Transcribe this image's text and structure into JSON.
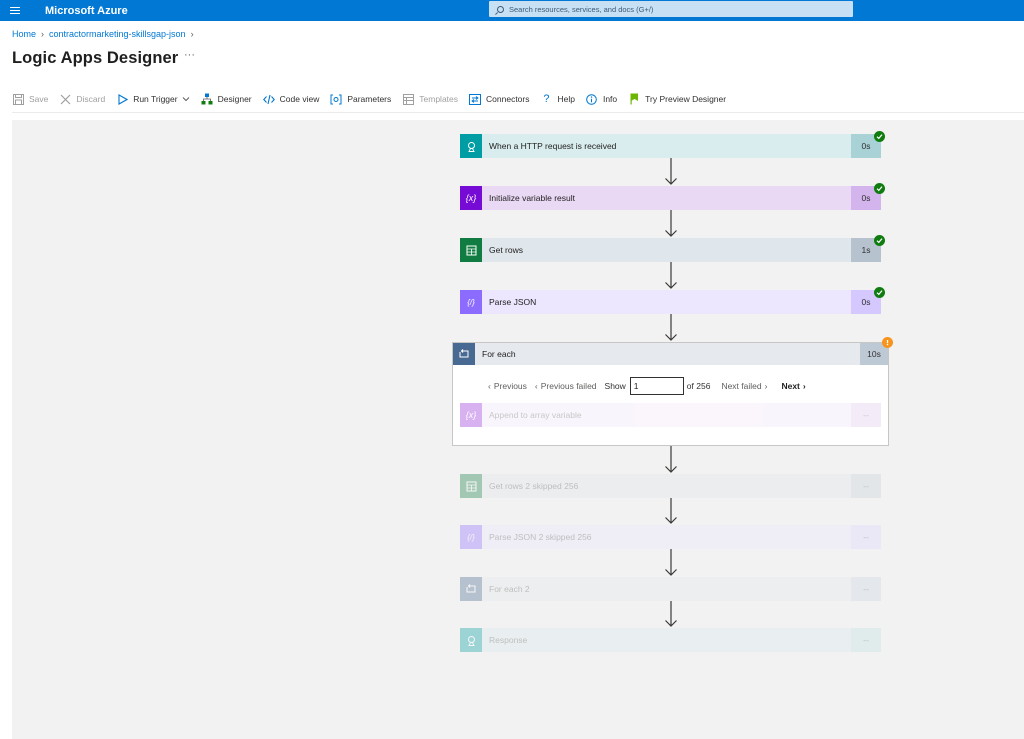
{
  "header": {
    "brand": "Microsoft Azure",
    "search_placeholder": "Search resources, services, and docs (G+/)"
  },
  "breadcrumb": {
    "home": "Home",
    "resource": "contractormarketing-skillsgap-json"
  },
  "page": {
    "title": "Logic Apps Designer",
    "more": "···"
  },
  "toolbar": {
    "save": "Save",
    "discard": "Discard",
    "run_trigger": "Run Trigger",
    "designer": "Designer",
    "code_view": "Code view",
    "parameters": "Parameters",
    "templates": "Templates",
    "connectors": "Connectors",
    "help": "Help",
    "info": "Info",
    "try_preview": "Try Preview Designer"
  },
  "steps": [
    {
      "label": "When a HTTP request is received",
      "duration": "0s",
      "status": "succeeded",
      "icon": "http-request-icon"
    },
    {
      "label": "Initialize variable result",
      "duration": "0s",
      "status": "succeeded",
      "icon": "variable-icon"
    },
    {
      "label": "Get rows",
      "duration": "1s",
      "status": "succeeded",
      "icon": "excel-table-icon"
    },
    {
      "label": "Parse JSON",
      "duration": "0s",
      "status": "succeeded",
      "icon": "parse-json-icon"
    }
  ],
  "foreach": {
    "label": "For each",
    "duration": "10s",
    "status": "warning",
    "pager": {
      "previous": "Previous",
      "previous_failed": "Previous failed",
      "show": "Show",
      "current": "1",
      "of_total": "of 256",
      "next_failed": "Next failed",
      "next": "Next"
    },
    "inner": {
      "label": "Append to array variable",
      "duration": "--"
    }
  },
  "skipped_steps": [
    {
      "label": "Get rows 2 skipped 256",
      "duration": "--",
      "icon": "excel-table-icon"
    },
    {
      "label": "Parse JSON 2 skipped 256",
      "duration": "--",
      "icon": "parse-json-icon"
    },
    {
      "label": "For each 2",
      "duration": "--",
      "icon": "loop-icon"
    },
    {
      "label": "Response",
      "duration": "--",
      "icon": "response-icon"
    }
  ],
  "colors": {
    "azure_blue": "#0078d4",
    "http_teal": "#009da5",
    "variable_purple": "#770bd6",
    "excel_green": "#107c41",
    "json_violet": "#8c6cff",
    "loop_slate": "#486991",
    "success": "#107c10",
    "warning": "#f7941d"
  }
}
